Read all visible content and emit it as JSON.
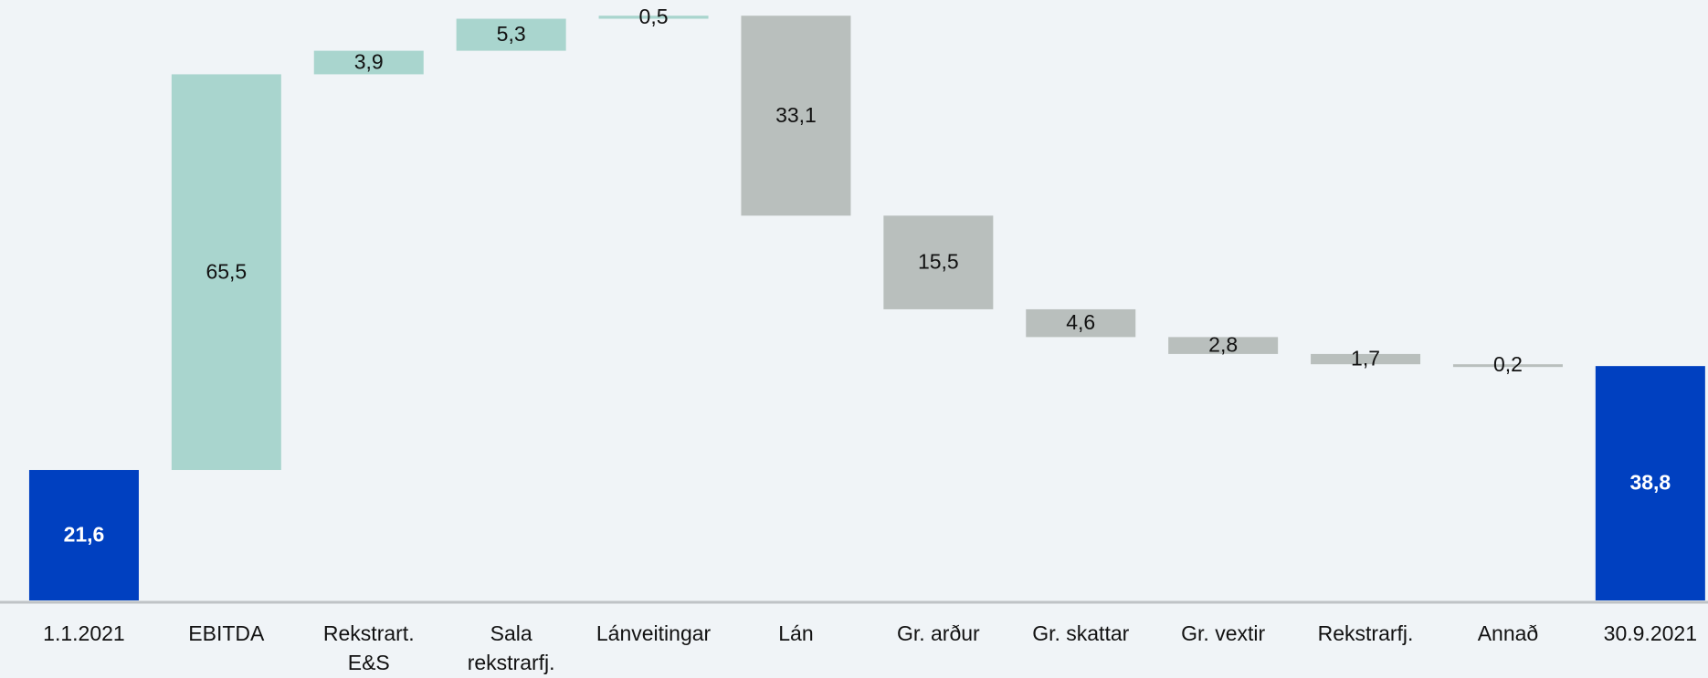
{
  "chart_data": {
    "type": "waterfall",
    "categories": [
      "1.1.2021",
      "EBITDA",
      "Rekstrart.\nE&S",
      "Sala\nrekstrarfj.",
      "Lánveitingar",
      "Lán",
      "Gr. arður",
      "Gr. skattar",
      "Gr. vextir",
      "Rekstrarfj.",
      "Annað",
      "30.9.2021"
    ],
    "values": [
      21.6,
      65.5,
      3.9,
      5.3,
      0.5,
      33.1,
      15.5,
      4.6,
      2.8,
      1.7,
      0.2,
      38.8
    ],
    "value_labels": [
      "21,6",
      "65,5",
      "3,9",
      "5,3",
      "0,5",
      "33,1",
      "15,5",
      "4,6",
      "2,8",
      "1,7",
      "0,2",
      "38,8"
    ],
    "kinds": [
      "total",
      "increase",
      "increase",
      "increase",
      "increase",
      "decrease",
      "decrease",
      "decrease",
      "decrease",
      "decrease",
      "decrease",
      "total"
    ],
    "colors": {
      "total": "#0040c0",
      "increase": "#a9d5ce",
      "decrease": "#b9bfbd"
    },
    "ylim": [
      0,
      99.4
    ]
  }
}
